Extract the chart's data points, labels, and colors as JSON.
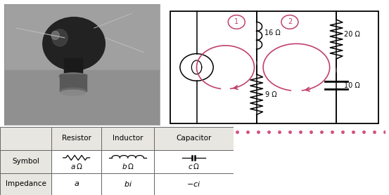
{
  "bg_color": "#ffffff",
  "table_bg_header": "#e8e6e0",
  "table_bg_label": "#e8e6e0",
  "table_border_color": "#666666",
  "circuit_color": "#000000",
  "arrow_color": "#c04070",
  "dot_color": "#d05080",
  "inductor_16": "16 Ω",
  "resistor_9": "9 Ω",
  "resistor_20": "20 Ω",
  "capacitor_10": "10 Ω"
}
